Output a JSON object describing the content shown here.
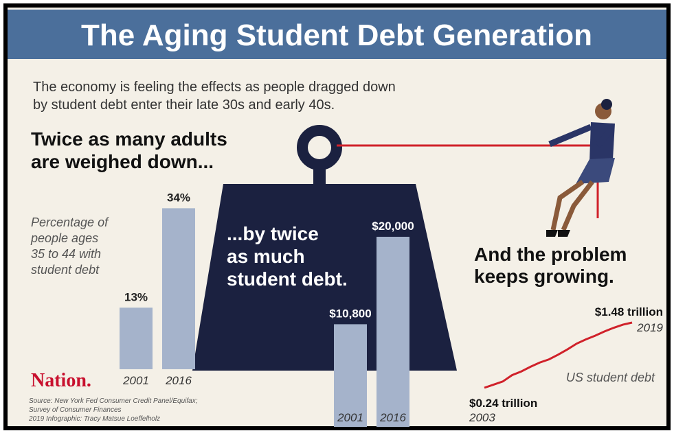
{
  "title": "The Aging Student Debt Generation",
  "subtitle": [
    "The economy is feeling the effects as people dragged down",
    "by student debt enter their late 30s and early 40s."
  ],
  "logo": "Nation.",
  "source": [
    "Source: New York Fed Consumer Credit Panel/Equifax;",
    "Survey of Consumer Finances",
    "2019 Infographic: Tracy Matsue Loeffelholz"
  ],
  "chart_data": [
    {
      "type": "bar",
      "heading": [
        "Twice as many adults",
        "are weighed down..."
      ],
      "annotation": [
        "Percentage of",
        "people ages",
        "35 to 44 with",
        "student debt"
      ],
      "categories": [
        "2001",
        "2016"
      ],
      "values": [
        13,
        34
      ],
      "value_labels": [
        "13%",
        "34%"
      ],
      "color": "#a5b3cb"
    },
    {
      "type": "bar",
      "heading": [
        "...by twice",
        "as much",
        "student debt."
      ],
      "categories": [
        "2001",
        "2016"
      ],
      "values": [
        10800,
        20000
      ],
      "value_labels": [
        "$10,800",
        "$20,000"
      ],
      "color": "#a5b3cb"
    },
    {
      "type": "line",
      "heading": [
        "And the problem",
        "keeps growing."
      ],
      "annotation": "US student debt",
      "categories": [
        "2003",
        null,
        null,
        null,
        null,
        null,
        null,
        null,
        null,
        null,
        null,
        null,
        null,
        null,
        null,
        null,
        "2019"
      ],
      "values": [
        0.24,
        0.3,
        0.36,
        0.48,
        0.55,
        0.64,
        0.72,
        0.78,
        0.87,
        0.97,
        1.08,
        1.16,
        1.23,
        1.31,
        1.38,
        1.44,
        1.48
      ],
      "value_labels": [
        "$0.24 trillion",
        null,
        null,
        null,
        null,
        null,
        null,
        null,
        null,
        null,
        null,
        null,
        null,
        null,
        null,
        null,
        "$1.48 trillion"
      ],
      "color": "#d0212a"
    }
  ]
}
